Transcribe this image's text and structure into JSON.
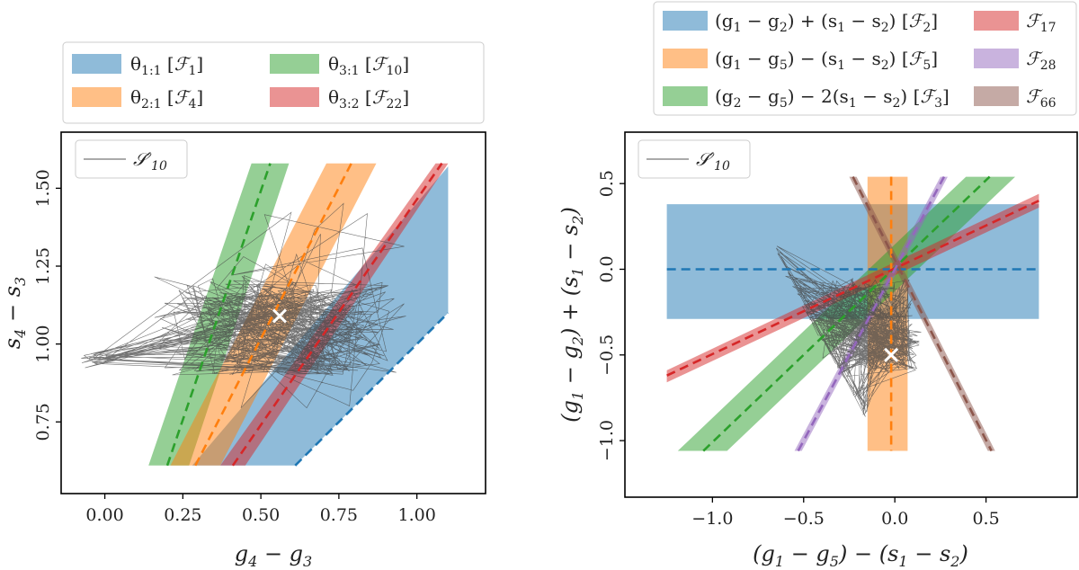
{
  "chart_data": [
    {
      "type": "line",
      "panel": "left",
      "xlabel": "g_4 − g_3",
      "ylabel": "s_4 − s_3",
      "xlim": [
        -0.14,
        1.22
      ],
      "ylim": [
        0.52,
        1.68
      ],
      "xticks": [
        "0.00",
        "0.25",
        "0.50",
        "0.75",
        "1.00"
      ],
      "xtick_values": [
        0.0,
        0.25,
        0.5,
        0.75,
        1.0
      ],
      "yticks": [
        "0.75",
        "1.00",
        "1.25",
        "1.50"
      ],
      "ytick_values": [
        0.75,
        1.0,
        1.25,
        1.5
      ],
      "grid": false,
      "legend_outside": {
        "placement": "top",
        "entries": [
          {
            "label": "θ1:1 [F1]",
            "color": "#1f77b4"
          },
          {
            "label": "θ3:1 [F10]",
            "color": "#2ca02c"
          },
          {
            "label": "θ2:1 [F4]",
            "color": "#ff7f0e"
          },
          {
            "label": "θ3:2 [F22]",
            "color": "#d62728"
          }
        ]
      },
      "legend_inside": {
        "placement": "top-left",
        "label": "S′10",
        "color": "#555555"
      },
      "series": [
        {
          "name": "θ1:1 [F1]",
          "color": "#1f77b4",
          "band": [
            [
              0.14,
              0.61
            ],
            [
              0.61,
              0.61
            ],
            [
              1.1,
              1.1
            ],
            [
              1.1,
              1.57
            ],
            [
              0.28,
              0.61
            ]
          ],
          "center": [
            [
              0.61,
              0.61
            ],
            [
              1.1,
              1.1
            ]
          ]
        },
        {
          "name": "θ3:1 [F10]",
          "color": "#2ca02c",
          "band": [
            [
              0.14,
              0.61
            ],
            [
              0.27,
              0.61
            ],
            [
              0.59,
              1.58
            ],
            [
              0.47,
              1.58
            ]
          ],
          "center": [
            [
              0.2,
              0.61
            ],
            [
              0.53,
              1.58
            ]
          ]
        },
        {
          "name": "θ2:1 [F4]",
          "color": "#ff7f0e",
          "band": [
            [
              0.21,
              0.61
            ],
            [
              0.37,
              0.61
            ],
            [
              0.87,
              1.58
            ],
            [
              0.71,
              1.58
            ]
          ],
          "center": [
            [
              0.29,
              0.61
            ],
            [
              0.79,
              1.58
            ]
          ]
        },
        {
          "name": "θ3:2 [F22]",
          "color": "#d62728",
          "band": [
            [
              0.37,
              0.61
            ],
            [
              0.45,
              0.61
            ],
            [
              1.1,
              1.58
            ],
            [
              1.06,
              1.58
            ]
          ],
          "center": [
            [
              0.41,
              0.61
            ],
            [
              1.08,
              1.58
            ]
          ]
        }
      ],
      "marker": {
        "x": 0.56,
        "y": 1.09,
        "symbol": "×",
        "color": "#ffffff"
      }
    },
    {
      "type": "line",
      "panel": "right",
      "xlabel": "(g_1 − g_5) − (s_1 − s_2)",
      "ylabel": "(g_1 − g_2) + (s_1 − s_2)",
      "xlim": [
        -1.48,
        1.0
      ],
      "ylim": [
        -1.33,
        0.8
      ],
      "xticks": [
        "−1.0",
        "−0.5",
        "0.0",
        "0.5"
      ],
      "xtick_values": [
        -1.0,
        -0.5,
        0.0,
        0.5
      ],
      "yticks": [
        "0.5",
        "0.0",
        "−0.5",
        "−1.0"
      ],
      "ytick_values": [
        0.5,
        0.0,
        -0.5,
        -1.0
      ],
      "grid": false,
      "legend_outside": {
        "placement": "top",
        "entries": [
          {
            "label": "(g1 − g2) + (s1 − s2) [F2]",
            "color": "#1f77b4"
          },
          {
            "label": "F17",
            "color": "#d62728"
          },
          {
            "label": "(g1 − g5) − (s1 − s2) [F5]",
            "color": "#ff7f0e"
          },
          {
            "label": "F28",
            "color": "#9467bd"
          },
          {
            "label": "(g2 − g5) − 2(s1 − s2) [F3]",
            "color": "#2ca02c"
          },
          {
            "label": "F66",
            "color": "#8c564b"
          }
        ]
      },
      "legend_inside": {
        "placement": "top-left",
        "label": "S′10",
        "color": "#555555"
      },
      "series": [
        {
          "name": "F2",
          "color": "#1f77b4",
          "band": [
            [
              -1.25,
              0.38
            ],
            [
              0.79,
              0.38
            ],
            [
              0.79,
              -0.29
            ],
            [
              -1.25,
              -0.29
            ]
          ],
          "center": [
            [
              -1.25,
              0.0
            ],
            [
              0.79,
              0.0
            ]
          ]
        },
        {
          "name": "F5",
          "color": "#ff7f0e",
          "band": [
            [
              -0.15,
              0.54
            ],
            [
              0.07,
              0.54
            ],
            [
              0.07,
              -1.06
            ],
            [
              -0.15,
              -1.06
            ]
          ],
          "center": [
            [
              -0.02,
              0.54
            ],
            [
              -0.02,
              -1.06
            ]
          ]
        },
        {
          "name": "F3",
          "color": "#2ca02c",
          "band": [
            [
              -1.19,
              -1.06
            ],
            [
              -0.92,
              -1.06
            ],
            [
              0.66,
              0.54
            ],
            [
              0.39,
              0.54
            ]
          ],
          "center": [
            [
              -1.05,
              -1.06
            ],
            [
              0.52,
              0.54
            ]
          ]
        },
        {
          "name": "F17",
          "color": "#d62728",
          "band": [
            [
              -1.25,
              -0.59
            ],
            [
              0.79,
              0.44
            ],
            [
              0.79,
              0.36
            ],
            [
              -1.25,
              -0.66
            ]
          ],
          "center": [
            [
              -1.25,
              -0.62
            ],
            [
              0.79,
              0.4
            ]
          ]
        },
        {
          "name": "F28",
          "color": "#9467bd",
          "band": [
            [
              -0.55,
              -1.06
            ],
            [
              -0.51,
              -1.06
            ],
            [
              0.29,
              0.54
            ],
            [
              0.25,
              0.54
            ]
          ],
          "center": [
            [
              -0.53,
              -1.06
            ],
            [
              0.27,
              0.54
            ]
          ]
        },
        {
          "name": "F66",
          "color": "#8c564b",
          "band": [
            [
              -0.25,
              0.54
            ],
            [
              -0.21,
              0.54
            ],
            [
              0.55,
              -1.06
            ],
            [
              0.51,
              -1.06
            ]
          ],
          "center": [
            [
              -0.23,
              0.54
            ],
            [
              0.53,
              -1.06
            ]
          ]
        }
      ],
      "marker": {
        "x": -0.02,
        "y": -0.5,
        "symbol": "×",
        "color": "#ffffff"
      }
    }
  ]
}
